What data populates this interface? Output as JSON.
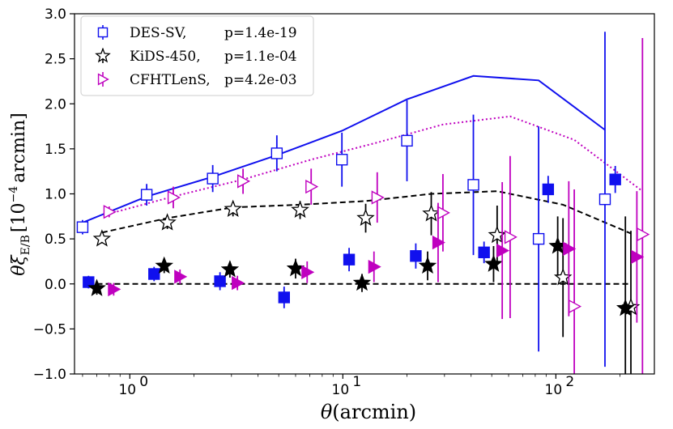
{
  "chart_data": {
    "type": "scatter",
    "title": "",
    "xlabel": "θ(arcmin)",
    "ylabel": "θξ_E/B [10^-4 arcmin]",
    "xscale": "log",
    "xlim": [
      0.55,
      290
    ],
    "ylim": [
      -1.0,
      3.0
    ],
    "yticks": [
      -1.0,
      -0.5,
      0.0,
      0.5,
      1.0,
      1.5,
      2.0,
      2.5,
      3.0
    ],
    "ytick_labels": [
      "−1.0",
      "−0.5",
      "0.0",
      "0.5",
      "1.0",
      "1.5",
      "2.0",
      "2.5",
      "3.0"
    ],
    "xticks": [
      1,
      10,
      100
    ],
    "xtick_labels": [
      "10",
      "10",
      "10"
    ],
    "xtick_exponents": [
      "0",
      "1",
      "2"
    ],
    "legend": {
      "position": "top-left",
      "entries": [
        {
          "name": "DES-SV,",
          "p_label": "p=1.4e-19"
        },
        {
          "name": "KiDS-450,",
          "p_label": "p=1.1e-04"
        },
        {
          "name": "CFHTLenS,",
          "p_label": "p=4.2e-03"
        }
      ]
    },
    "colors": {
      "des": "#1010ee",
      "kids": "#000000",
      "cfht": "#bf00bf"
    },
    "series": [
      {
        "name": "DES-SV E-mode",
        "marker": "square-open",
        "color": "#1010ee",
        "points": [
          {
            "x": 0.6,
            "y": 0.63,
            "err": 0.08
          },
          {
            "x": 1.2,
            "y": 0.99,
            "err": 0.12
          },
          {
            "x": 2.45,
            "y": 1.17,
            "err": 0.15
          },
          {
            "x": 4.9,
            "y": 1.45,
            "err": 0.2
          },
          {
            "x": 9.9,
            "y": 1.38,
            "err": 0.3
          },
          {
            "x": 20,
            "y": 1.59,
            "err": 0.45
          },
          {
            "x": 41,
            "y": 1.1,
            "err": 0.78
          },
          {
            "x": 83,
            "y": 0.5,
            "err": 1.25
          },
          {
            "x": 170,
            "y": 0.94,
            "err": 1.86
          }
        ]
      },
      {
        "name": "DES-SV B-mode",
        "marker": "square-filled",
        "color": "#1010ee",
        "points": [
          {
            "x": 0.64,
            "y": 0.02,
            "err": 0.07
          },
          {
            "x": 1.3,
            "y": 0.11,
            "err": 0.08
          },
          {
            "x": 2.65,
            "y": 0.03,
            "err": 0.1
          },
          {
            "x": 5.3,
            "y": -0.15,
            "err": 0.12
          },
          {
            "x": 10.7,
            "y": 0.27,
            "err": 0.13
          },
          {
            "x": 22,
            "y": 0.31,
            "err": 0.14
          },
          {
            "x": 46,
            "y": 0.35,
            "err": 0.12
          },
          {
            "x": 92,
            "y": 1.05,
            "err": 0.15
          },
          {
            "x": 190,
            "y": 1.16,
            "err": 0.15
          }
        ]
      },
      {
        "name": "KiDS-450 E-mode",
        "marker": "star-open",
        "color": "#000000",
        "points": [
          {
            "x": 0.74,
            "y": 0.5,
            "err": 0.05
          },
          {
            "x": 1.5,
            "y": 0.68,
            "err": 0.07
          },
          {
            "x": 3.05,
            "y": 0.83,
            "err": 0.08
          },
          {
            "x": 6.3,
            "y": 0.82,
            "err": 0.1
          },
          {
            "x": 12.8,
            "y": 0.73,
            "err": 0.16
          },
          {
            "x": 26,
            "y": 0.78,
            "err": 0.24
          },
          {
            "x": 53,
            "y": 0.54,
            "err": 0.33
          },
          {
            "x": 108,
            "y": 0.07,
            "err": 0.66
          },
          {
            "x": 225,
            "y": -0.26,
            "err": 0.85
          }
        ]
      },
      {
        "name": "KiDS-450 B-mode",
        "marker": "star-filled",
        "color": "#000000",
        "points": [
          {
            "x": 0.7,
            "y": -0.05,
            "err": 0.07
          },
          {
            "x": 1.45,
            "y": 0.2,
            "err": 0.08
          },
          {
            "x": 2.95,
            "y": 0.16,
            "err": 0.09
          },
          {
            "x": 6.0,
            "y": 0.17,
            "err": 0.11
          },
          {
            "x": 12.3,
            "y": 0.01,
            "err": 0.1
          },
          {
            "x": 25,
            "y": 0.2,
            "err": 0.16
          },
          {
            "x": 51,
            "y": 0.22,
            "err": 0.2
          },
          {
            "x": 102,
            "y": 0.42,
            "err": 0.33
          },
          {
            "x": 212,
            "y": -0.27,
            "err": 1.02
          }
        ]
      },
      {
        "name": "CFHTLenS E-mode",
        "marker": "triangle-right-open",
        "color": "#bf00bf",
        "points": [
          {
            "x": 0.8,
            "y": 0.8,
            "err": 0.06
          },
          {
            "x": 1.6,
            "y": 0.96,
            "err": 0.12
          },
          {
            "x": 3.4,
            "y": 1.14,
            "err": 0.14
          },
          {
            "x": 7.1,
            "y": 1.08,
            "err": 0.2
          },
          {
            "x": 14.5,
            "y": 0.96,
            "err": 0.28
          },
          {
            "x": 29.5,
            "y": 0.79,
            "err": 0.43
          },
          {
            "x": 61,
            "y": 0.52,
            "err": 0.9
          },
          {
            "x": 122,
            "y": -0.25,
            "err": 1.3
          },
          {
            "x": 255,
            "y": 0.55,
            "err": 2.18
          }
        ]
      },
      {
        "name": "CFHTLenS B-mode",
        "marker": "triangle-right-filled",
        "color": "#bf00bf",
        "points": [
          {
            "x": 0.84,
            "y": -0.06,
            "err": 0.07
          },
          {
            "x": 1.72,
            "y": 0.08,
            "err": 0.08
          },
          {
            "x": 3.2,
            "y": 0.01,
            "err": 0.08
          },
          {
            "x": 6.8,
            "y": 0.13,
            "err": 0.12
          },
          {
            "x": 14,
            "y": 0.19,
            "err": 0.17
          },
          {
            "x": 28,
            "y": 0.46,
            "err": 0.44
          },
          {
            "x": 56,
            "y": 0.37,
            "err": 0.76
          },
          {
            "x": 115,
            "y": 0.39,
            "err": 0.75
          },
          {
            "x": 240,
            "y": 0.3,
            "err": 0.73
          }
        ]
      }
    ],
    "lines": [
      {
        "name": "DES-SV model",
        "color": "#1010ee",
        "style": "solid",
        "x": [
          0.6,
          1.2,
          2.45,
          4.9,
          9.9,
          20,
          41,
          83,
          170
        ],
        "y": [
          0.68,
          0.97,
          1.19,
          1.43,
          1.7,
          2.05,
          2.31,
          2.26,
          1.71
        ]
      },
      {
        "name": "CFHTLenS model",
        "color": "#bf00bf",
        "style": "dotted",
        "x": [
          0.8,
          1.6,
          3.4,
          7.1,
          14.5,
          29.5,
          61,
          122,
          255
        ],
        "y": [
          0.78,
          0.97,
          1.16,
          1.38,
          1.57,
          1.77,
          1.86,
          1.6,
          1.03
        ]
      },
      {
        "name": "KiDS-450 model",
        "color": "#000000",
        "style": "dashed",
        "x": [
          0.74,
          1.5,
          3.05,
          6.3,
          12.8,
          26,
          53,
          108,
          225
        ],
        "y": [
          0.57,
          0.73,
          0.85,
          0.88,
          0.92,
          1.0,
          1.03,
          0.88,
          0.56
        ]
      },
      {
        "name": "zero line",
        "color": "#000000",
        "style": "dashed",
        "x": [
          0.7,
          225
        ],
        "y": [
          0.0,
          0.0
        ]
      }
    ]
  }
}
